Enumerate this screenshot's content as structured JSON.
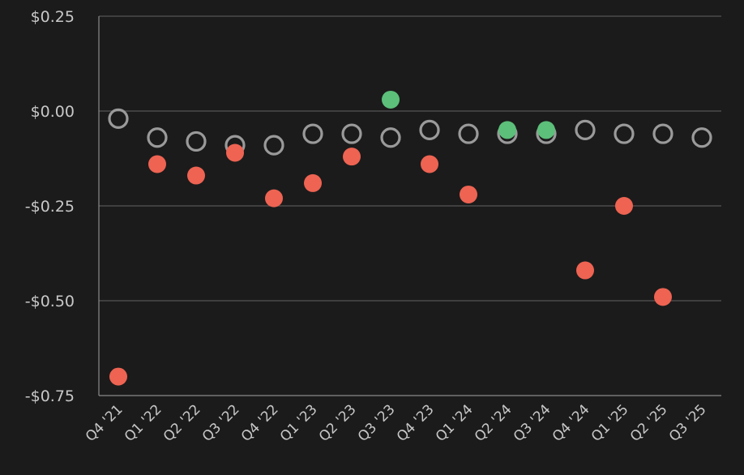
{
  "chart_data": {
    "type": "scatter",
    "categories": [
      "Q4 '21",
      "Q1 '22",
      "Q2 '22",
      "Q3 '22",
      "Q4 '22",
      "Q1 '23",
      "Q2 '23",
      "Q3 '23",
      "Q4 '23",
      "Q1 '24",
      "Q2 '24",
      "Q3 '24",
      "Q4 '24",
      "Q1 '25",
      "Q2 '25",
      "Q3 '25"
    ],
    "ylim": [
      -0.75,
      0.25
    ],
    "yticks": [
      0.25,
      0.0,
      -0.25,
      -0.5,
      -0.75
    ],
    "ytick_labels": [
      "$0.25",
      "$0.00",
      "-$0.25",
      "-$0.50",
      "-$0.75"
    ],
    "grid": true,
    "series": [
      {
        "role": "estimate",
        "marker": "hollow-circle",
        "color": "#9a9a9a",
        "values": [
          -0.02,
          -0.07,
          -0.08,
          -0.09,
          -0.09,
          -0.06,
          -0.06,
          -0.07,
          -0.05,
          -0.06,
          -0.06,
          -0.06,
          -0.05,
          -0.06,
          -0.06,
          -0.07
        ]
      },
      {
        "role": "actual",
        "marker": "filled-circle",
        "values": [
          -0.7,
          -0.14,
          -0.17,
          -0.11,
          -0.23,
          -0.19,
          -0.12,
          0.03,
          -0.14,
          -0.22,
          -0.05,
          -0.05,
          -0.42,
          -0.25,
          -0.49,
          null
        ],
        "beat_color": "#5cbf7a",
        "miss_color": "#ee6352"
      }
    ]
  }
}
